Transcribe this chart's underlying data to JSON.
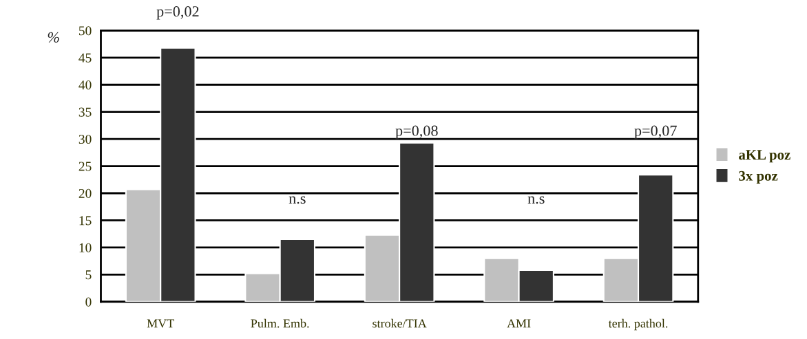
{
  "chart_data": {
    "type": "bar",
    "ylabel": "%",
    "categories": [
      "MVT",
      "Pulm. Emb.",
      "stroke/TIA",
      "AMI",
      "terh. pathol."
    ],
    "series": [
      {
        "name": "aKL poz",
        "color": "#c0c0c0",
        "values": [
          20.7,
          5.2,
          12.3,
          8.0,
          8.0
        ]
      },
      {
        "name": "3x poz",
        "color": "#333333",
        "values": [
          46.8,
          11.5,
          29.3,
          5.8,
          23.4
        ]
      }
    ],
    "ylim": [
      0,
      50
    ],
    "yticks": [
      0,
      5,
      10,
      15,
      20,
      25,
      30,
      35,
      40,
      45,
      50
    ],
    "grid": "y",
    "legend": "right",
    "annotations": [
      "p=0,02",
      "n.s",
      "p=0,08",
      "n.s",
      "p=0,07"
    ]
  }
}
